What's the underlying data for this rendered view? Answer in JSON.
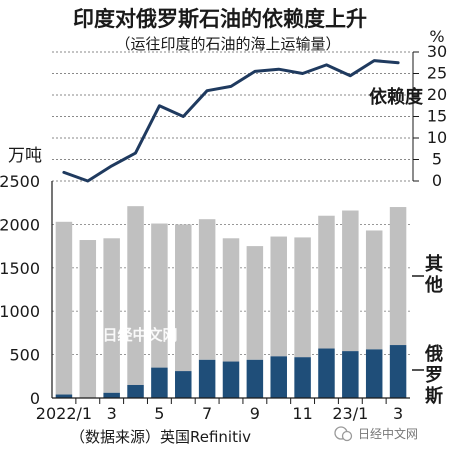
{
  "chart_data": {
    "type": "bar",
    "title": "印度对俄罗斯石油的依赖度上升",
    "subtitle": "（运往印度的石油的海上运输量）",
    "categories": [
      "2022/1",
      "2",
      "3",
      "4",
      "5",
      "6",
      "7",
      "8",
      "9",
      "10",
      "11",
      "12",
      "23/1",
      "2",
      "3"
    ],
    "x_tick_labels": [
      "2022/1",
      "",
      "3",
      "",
      "5",
      "",
      "7",
      "",
      "9",
      "",
      "11",
      "",
      "23/1",
      "",
      "3"
    ],
    "left_axis": {
      "unit_label": "万吨",
      "ylim": [
        0,
        2500
      ],
      "ticks": [
        "0",
        "500",
        "1000",
        "1500",
        "2000",
        "2500"
      ]
    },
    "right_axis": {
      "unit_label": "%",
      "ylim": [
        0,
        30
      ],
      "ticks": [
        "0",
        "5",
        "10",
        "15",
        "20",
        "25",
        "30"
      ]
    },
    "series": [
      {
        "name": "俄罗斯",
        "kind": "stacked-bar",
        "color": "#1f4e79",
        "values": [
          40,
          0,
          60,
          150,
          350,
          310,
          440,
          420,
          440,
          480,
          470,
          570,
          540,
          560,
          610
        ]
      },
      {
        "name": "其他",
        "kind": "stacked-bar",
        "color": "#c0c0c0",
        "values": [
          1990,
          1820,
          1780,
          2060,
          1660,
          1690,
          1620,
          1420,
          1310,
          1380,
          1380,
          1530,
          1620,
          1370,
          1590
        ]
      },
      {
        "name": "依赖度",
        "kind": "line",
        "axis": "right",
        "color": "#1f3a5f",
        "values": [
          2,
          0,
          3.5,
          6.5,
          17.5,
          15,
          21,
          22,
          25.5,
          26,
          25,
          27,
          24.5,
          28,
          27.5
        ]
      }
    ],
    "legend_labels": {
      "other": "其他",
      "russia": "俄罗斯"
    },
    "grid": true
  },
  "source_note": "（数据来源）英国Refinitiv",
  "watermark": "日经中文网",
  "brand_badge": "日经中文网"
}
